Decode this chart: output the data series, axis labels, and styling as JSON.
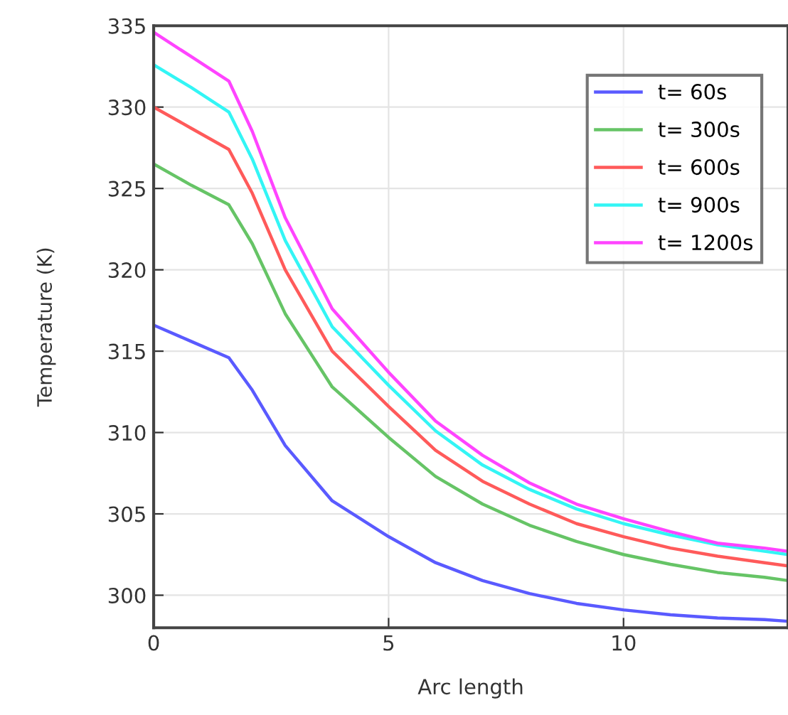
{
  "chart_data": {
    "type": "line",
    "xlabel": "Arc length",
    "ylabel": "Temperature (K)",
    "x": [
      0,
      0.8,
      1.6,
      2.1,
      2.8,
      3.8,
      5,
      6,
      7,
      8,
      9,
      10,
      11,
      12,
      13,
      13.5
    ],
    "series": [
      {
        "name": "t= 60s",
        "color": "#5a5aff",
        "values": [
          316.6,
          315.6,
          314.6,
          312.6,
          309.2,
          305.8,
          303.6,
          302.0,
          300.9,
          300.1,
          299.5,
          299.1,
          298.8,
          298.6,
          298.5,
          298.4
        ]
      },
      {
        "name": "t= 300s",
        "color": "#66c466",
        "values": [
          326.5,
          325.2,
          324.0,
          321.6,
          317.3,
          312.8,
          309.7,
          307.3,
          305.6,
          304.3,
          303.3,
          302.5,
          301.9,
          301.4,
          301.1,
          300.9
        ]
      },
      {
        "name": "t= 600s",
        "color": "#ff5a5a",
        "values": [
          330.0,
          328.7,
          327.4,
          324.7,
          320.0,
          315.0,
          311.6,
          308.9,
          307.0,
          305.6,
          304.4,
          303.6,
          302.9,
          302.4,
          302.0,
          301.8
        ]
      },
      {
        "name": "t= 900s",
        "color": "#33f5f5",
        "values": [
          332.6,
          331.2,
          329.7,
          326.8,
          321.8,
          316.5,
          312.9,
          310.1,
          308.0,
          306.5,
          305.3,
          304.4,
          303.7,
          303.1,
          302.7,
          302.5
        ]
      },
      {
        "name": "t= 1200s",
        "color": "#ff44ff",
        "values": [
          334.6,
          333.1,
          331.6,
          328.5,
          323.2,
          317.6,
          313.7,
          310.7,
          308.6,
          306.9,
          305.6,
          304.7,
          303.9,
          303.2,
          302.9,
          302.7
        ]
      }
    ],
    "xlim": [
      0,
      13.5
    ],
    "xticks": [
      0,
      5,
      10
    ],
    "ylim": [
      298,
      335
    ],
    "yticks": [
      300,
      305,
      310,
      315,
      320,
      325,
      330,
      335
    ],
    "grid": true,
    "legend": "top right"
  }
}
